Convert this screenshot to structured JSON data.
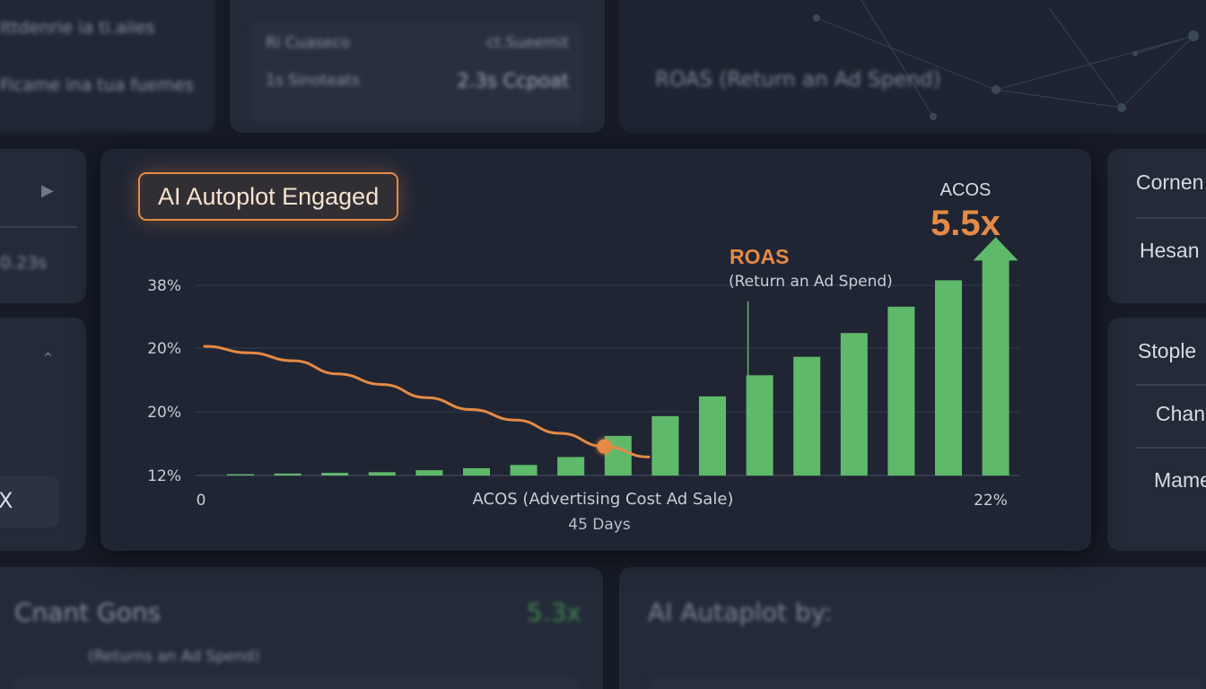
{
  "background_cards": {
    "top_left_lines": [
      "Ittdenrie ia ti.aiies",
      "Ficame ina tua fuemes"
    ],
    "top_mid_rows": [
      {
        "left": "Ri Cuaseco",
        "right": "ct.Sueemit"
      },
      {
        "left": "1s Sinoteats",
        "right": "2.3s Ccpoat"
      }
    ],
    "top_right_title": "ROAS (Return an Ad Spend)",
    "left_card_value": "0.23s",
    "left_card_button": "X",
    "right_card1_items": [
      "Cornen",
      "Hesan"
    ],
    "right_card2_items": [
      "Stople",
      "Chan",
      "Mame"
    ],
    "bottom_left_title": "Cnant Gons",
    "bottom_left_value": "5.3x",
    "bottom_left_sub": "(Returns an Ad Spend)",
    "bottom_right_title": "AI Autaplot by:"
  },
  "colors": {
    "accent_orange": "#e58a45",
    "bar_green": "#5fb96a",
    "card_bg": "#1f2533",
    "page_bg": "#161b26"
  },
  "badge": {
    "label": "AI Autoplot Engaged"
  },
  "chart_data": {
    "type": "bar",
    "xlabel": "ACOS (Advertising Cost Ad Sale)",
    "xlabel2": "45 Days",
    "x_tick_left": "0",
    "x_tick_right": "22%",
    "y_ticks": [
      "38%",
      "20%",
      "20%",
      "12%"
    ],
    "series": [
      {
        "name": "ROAS",
        "values": [
          0.1,
          0.15,
          0.2,
          0.25,
          0.4,
          0.55,
          0.8,
          1.4,
          3.0,
          4.5,
          6.0,
          7.6,
          9.0,
          10.8,
          12.8,
          14.8,
          16.3
        ]
      },
      {
        "name": "ACOS",
        "values": [
          9.8,
          9.3,
          8.7,
          7.7,
          6.9,
          5.9,
          5.0,
          4.2,
          3.2,
          2.2,
          1.4
        ]
      }
    ],
    "final_marker": {
      "label": "ACOS",
      "value": "5.5x"
    },
    "roas_annotation": {
      "title": "ROAS",
      "subtitle": "(Return an Ad Spend)"
    },
    "ylim": [
      0,
      20
    ],
    "grid": true
  }
}
